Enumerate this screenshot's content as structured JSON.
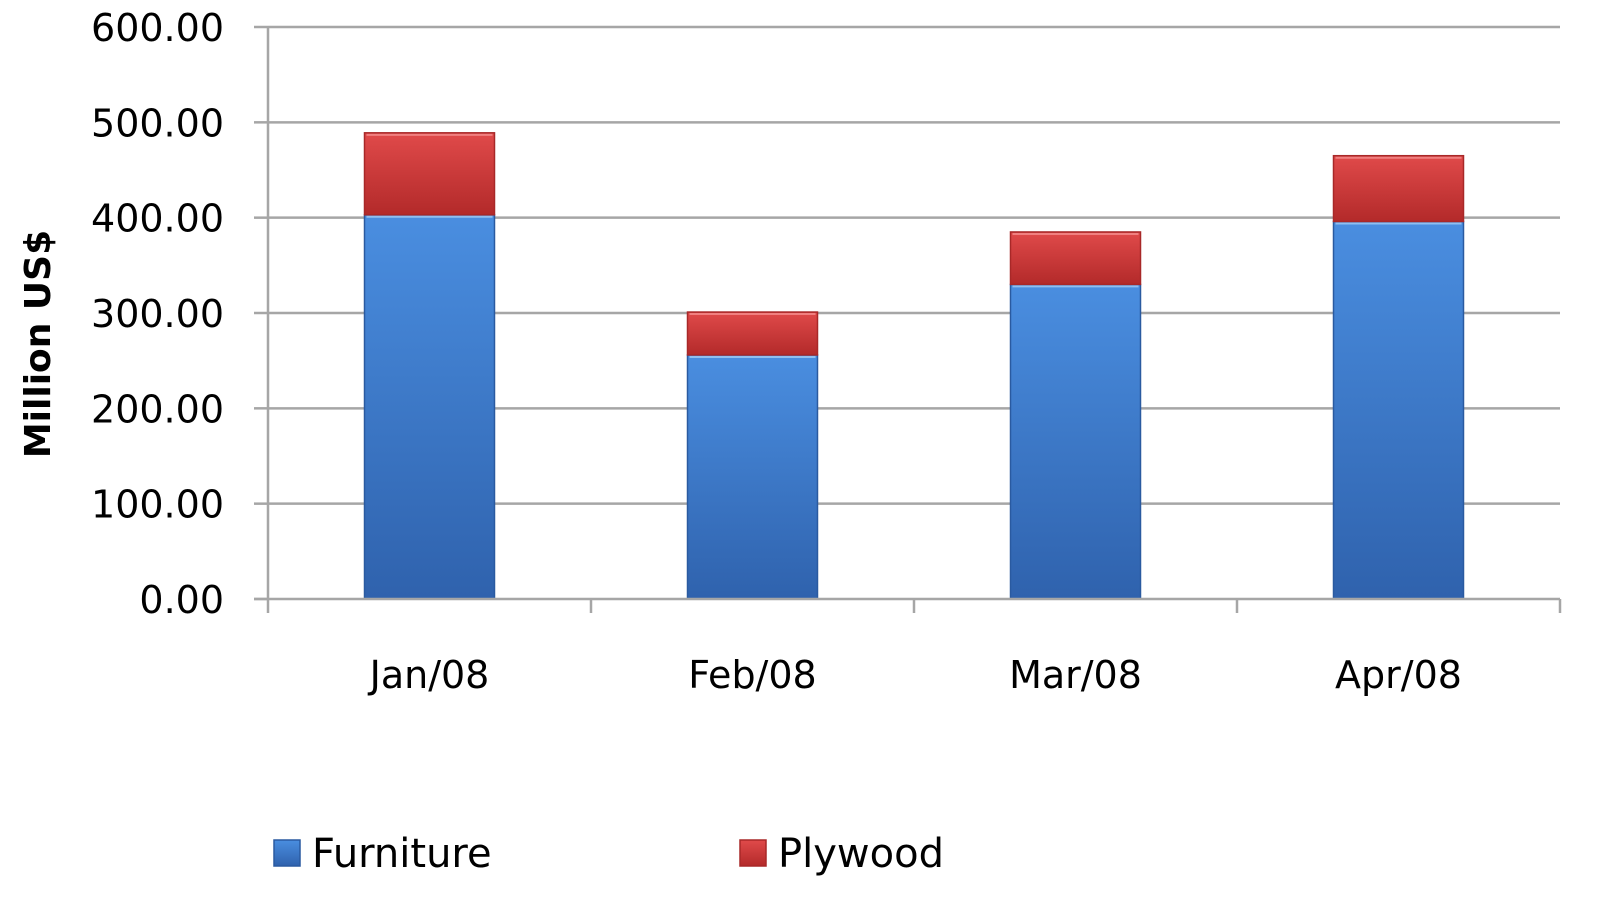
{
  "chart_data": {
    "type": "bar",
    "stacked": true,
    "title": "",
    "xlabel": "",
    "ylabel": "Million US$",
    "ylim": [
      0,
      600
    ],
    "yticks": [
      0,
      100,
      200,
      300,
      400,
      500,
      600
    ],
    "ytick_labels": [
      "0.00",
      "100.00",
      "200.00",
      "300.00",
      "400.00",
      "500.00",
      "600.00"
    ],
    "categories": [
      "Jan/08",
      "Feb/08",
      "Mar/08",
      "Apr/08"
    ],
    "series": [
      {
        "name": "Furniture",
        "values": [
          403,
          256,
          330,
          396
        ],
        "color": "#3f7fd0"
      },
      {
        "name": "Plywood",
        "values": [
          86,
          45,
          55,
          69
        ],
        "color": "#d53b3b"
      }
    ],
    "grid": true,
    "legend": {
      "position": "bottom-left"
    }
  }
}
